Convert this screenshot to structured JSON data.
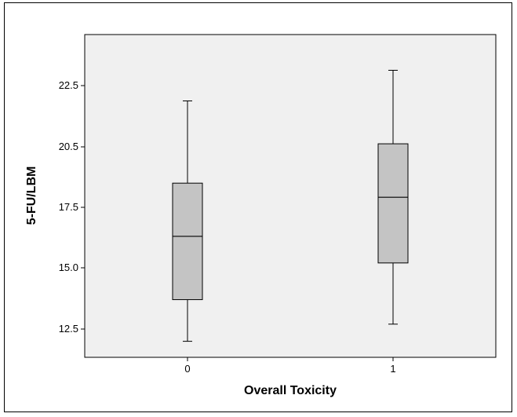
{
  "chart_data": {
    "type": "boxplot",
    "title": "",
    "xlabel": "Overall Toxicity",
    "ylabel": "5-FU/LBM",
    "categories": [
      "0",
      "1"
    ],
    "ylim": [
      11.5,
      24.5
    ],
    "yticks": [
      12.5,
      15.0,
      17.5,
      20.5,
      22.5
    ],
    "ytick_labels": [
      "12.5",
      "15.0",
      "17.5",
      "20.5",
      "22.5"
    ],
    "grid": false,
    "legend": "none",
    "boxes": [
      {
        "category": "0",
        "min": 12.0,
        "q1": 13.7,
        "median": 16.3,
        "q3": 18.7,
        "max": 22.0
      },
      {
        "category": "1",
        "min": 12.7,
        "q1": 15.2,
        "median": 18.0,
        "q3": 20.6,
        "max": 23.0
      }
    ],
    "colors": {
      "plot_background": "#f0f0f0",
      "box_fill": "#c4c4c4",
      "line": "#000000"
    }
  }
}
